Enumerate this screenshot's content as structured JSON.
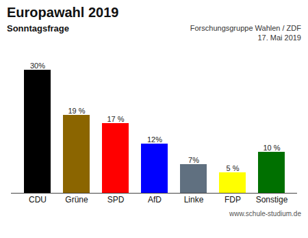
{
  "chart_data": {
    "type": "bar",
    "title": "Europawahl 2019",
    "subtitle": "Sonntagsfrage",
    "annotations": [
      "Forschungsgruppe Wahlen / ZDF\n17. Mai 2019",
      "www.schule-studium.de"
    ],
    "categories": [
      "CDU",
      "Grüne",
      "SPD",
      "AfD",
      "Linke",
      "FDP",
      "Sonstige"
    ],
    "values": [
      30,
      19,
      17,
      12,
      7,
      5,
      10
    ],
    "value_labels": [
      "30%",
      "19 %",
      "17 %",
      "12%",
      "7%",
      "5 %",
      "10 %"
    ],
    "colors": [
      "#000000",
      "#8B6500",
      "#FF0000",
      "#0000FF",
      "#607080",
      "#FFFF00",
      "#007000"
    ],
    "ylim": [
      0,
      34
    ],
    "grid": false,
    "data_labels": true,
    "tick_labels": "x"
  }
}
